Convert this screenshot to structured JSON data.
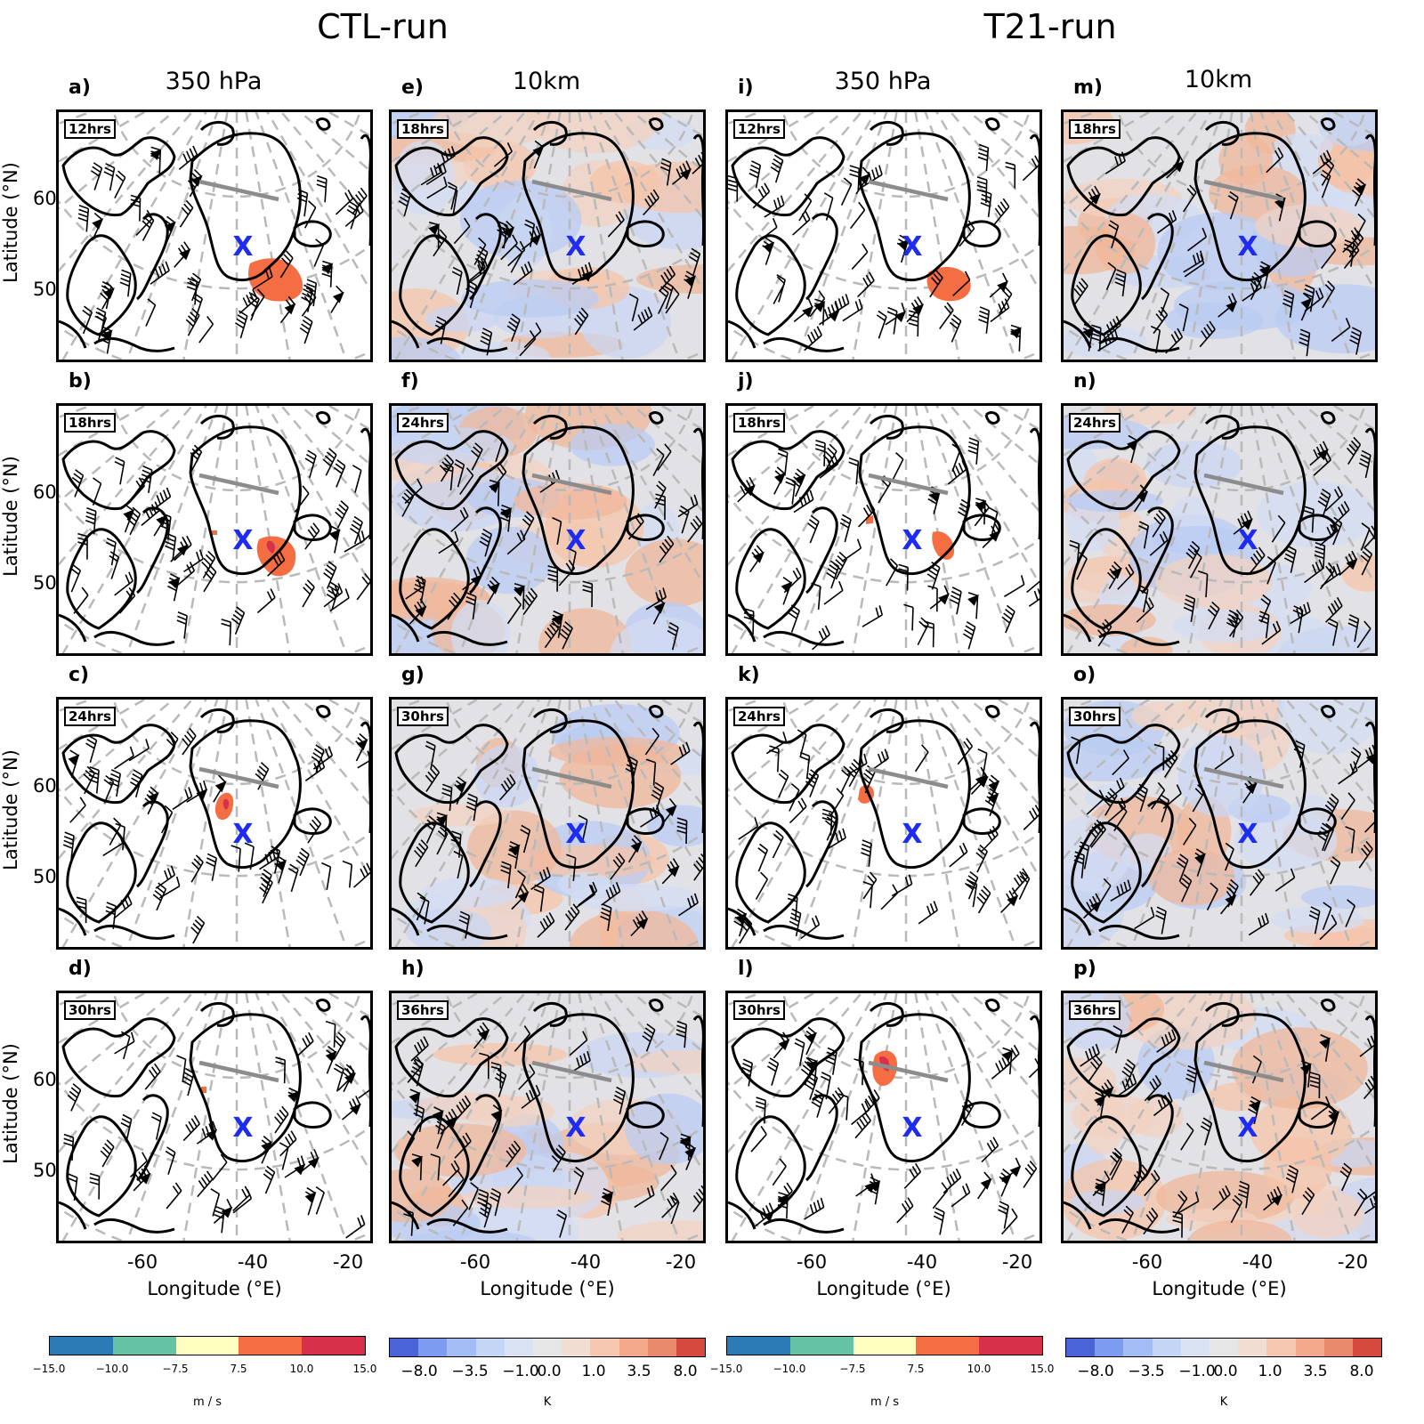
{
  "runs": [
    {
      "id": "ctl",
      "title": "CTL-run"
    },
    {
      "id": "t21",
      "title": "T21-run"
    }
  ],
  "columns": [
    {
      "header": "350 hPa",
      "type": "wind"
    },
    {
      "header": "10km",
      "type": "temp"
    },
    {
      "header": "350 hPa",
      "type": "wind"
    },
    {
      "header": "10km",
      "type": "temp"
    }
  ],
  "panels": [
    [
      {
        "label": "a)",
        "time": "12hrs"
      },
      {
        "label": "e)",
        "time": "18hrs"
      },
      {
        "label": "i)",
        "time": "12hrs"
      },
      {
        "label": "m)",
        "time": "18hrs"
      }
    ],
    [
      {
        "label": "b)",
        "time": "18hrs"
      },
      {
        "label": "f)",
        "time": "24hrs"
      },
      {
        "label": "j)",
        "time": "18hrs"
      },
      {
        "label": "n)",
        "time": "24hrs"
      }
    ],
    [
      {
        "label": "c)",
        "time": "24hrs"
      },
      {
        "label": "g)",
        "time": "30hrs"
      },
      {
        "label": "k)",
        "time": "24hrs"
      },
      {
        "label": "o)",
        "time": "30hrs"
      }
    ],
    [
      {
        "label": "d)",
        "time": "30hrs"
      },
      {
        "label": "h)",
        "time": "36hrs"
      },
      {
        "label": "l)",
        "time": "30hrs"
      },
      {
        "label": "p)",
        "time": "36hrs"
      }
    ]
  ],
  "axes": {
    "ylabel": "Latitude (°N)",
    "yticks": [
      "60",
      "50"
    ],
    "xlabel": "Longitude (°E)",
    "xticks": [
      "-60",
      "-40",
      "-20"
    ]
  },
  "colorbars": {
    "wind": {
      "ticks": [
        "−15.0",
        "−10.0",
        "−7.5",
        "7.5",
        "10.0",
        "15.0"
      ],
      "colors": [
        "#2c7bb6",
        "#66c2a4",
        "#ffffbf",
        "#f46d43",
        "#d7304b"
      ],
      "unit": "m / s"
    },
    "temp": {
      "ticks": [
        "−8.0",
        "−3.5",
        "−1.0",
        "0.0",
        "1.0",
        "3.5",
        "8.0"
      ],
      "colors": [
        "#4a63d6",
        "#7b9cf0",
        "#a4bdf7",
        "#c5d5f5",
        "#d9e2f2",
        "#e6e6e6",
        "#f2ddd3",
        "#f5c7b0",
        "#f3a98a",
        "#ea8a6c",
        "#d6493f"
      ],
      "unit": "K"
    }
  },
  "markers": {
    "center": "X",
    "center_color": "#1d2cf0",
    "line_color": "#8c8c8c"
  }
}
